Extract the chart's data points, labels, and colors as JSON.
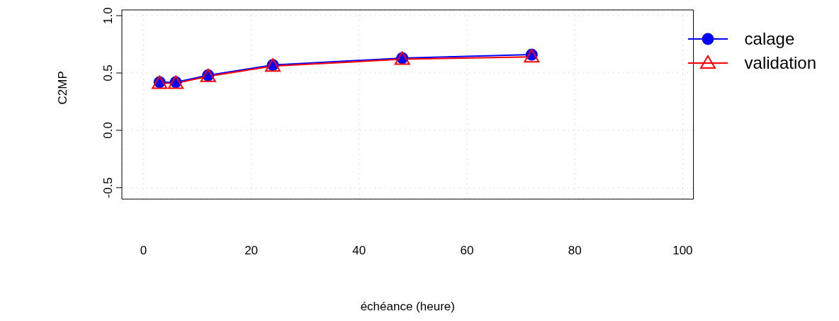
{
  "chart_data": {
    "type": "line",
    "xlabel": "échéance (heure)",
    "ylabel": "C2MP",
    "x": [
      3,
      6,
      12,
      24,
      48,
      72
    ],
    "series": [
      {
        "name": "calage",
        "color": "#0000ff",
        "values": [
          0.42,
          0.42,
          0.48,
          0.57,
          0.63,
          0.66
        ],
        "marker": "circle"
      },
      {
        "name": "validation",
        "color": "#ff0000",
        "values": [
          0.41,
          0.41,
          0.47,
          0.56,
          0.62,
          0.64
        ],
        "marker": "triangle"
      }
    ],
    "xlim": [
      -4,
      102
    ],
    "xticks": [
      0,
      20,
      40,
      60,
      80,
      100
    ],
    "ylim": [
      -0.6,
      1.05
    ],
    "yticks": [
      -0.5,
      {
        "value": 0,
        "label": "0.0"
      },
      0.5,
      {
        "value": 1,
        "label": "1.0"
      }
    ],
    "grid": true,
    "legend": "top right",
    "line_style": "solid"
  }
}
